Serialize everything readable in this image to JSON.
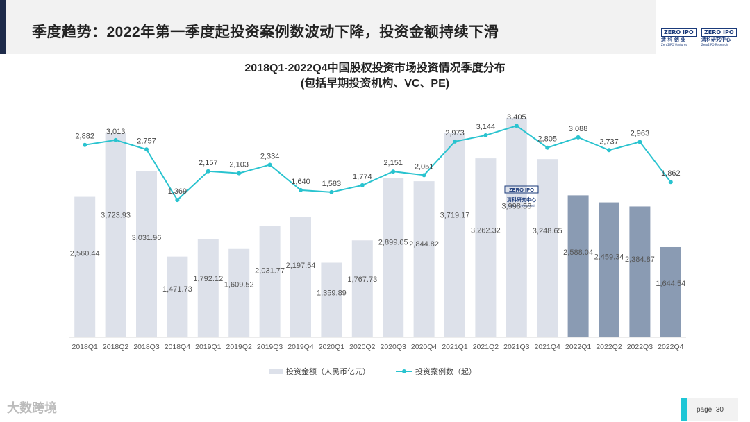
{
  "header": {
    "title": "季度趋势：2022年第一季度起投资案例数波动下降，投资金额持续下滑",
    "logo_left_top": "ZERO IPO",
    "logo_left_cn": "清 科 创 业",
    "logo_left_en": "Zero2IPO Ventures",
    "logo_right_top": "ZERO IPO",
    "logo_right_cn": "清科研究中心",
    "logo_right_en": "Zero2IPO Research"
  },
  "chart_data": {
    "type": "bar",
    "title": "2018Q1-2022Q4中国股权投资市场投资情况季度分布",
    "subtitle": "(包括早期投资机构、VC、PE)",
    "categories": [
      "2018Q1",
      "2018Q2",
      "2018Q3",
      "2018Q4",
      "2019Q1",
      "2019Q2",
      "2019Q3",
      "2019Q4",
      "2020Q1",
      "2020Q2",
      "2020Q3",
      "2020Q4",
      "2021Q1",
      "2021Q2",
      "2021Q3",
      "2021Q4",
      "2022Q1",
      "2022Q2",
      "2022Q3",
      "2022Q4"
    ],
    "series": [
      {
        "name": "投资金额（人民币亿元）",
        "type": "bar",
        "values": [
          2560.44,
          3723.93,
          3031.96,
          1471.73,
          1792.12,
          1609.52,
          2031.77,
          2197.54,
          1359.89,
          1767.73,
          2899.05,
          2844.82,
          3719.17,
          3262.32,
          3998.56,
          3248.65,
          2588.04,
          2459.34,
          2384.87,
          1644.54
        ],
        "labels": [
          "2,560.44",
          "3,723.93",
          "3,031.96",
          "1,471.73",
          "1,792.12",
          "1,609.52",
          "2,031.77",
          "2,197.54",
          "1,359.89",
          "1,767.73",
          "2,899.05",
          "2,844.82",
          "3,719.17",
          "3,262.32",
          "3,998.56",
          "3,248.65",
          "2,588.04",
          "2,459.34",
          "2,384.87",
          "1,644.54"
        ]
      },
      {
        "name": "投资案例数（起）",
        "type": "line",
        "values": [
          2882,
          3013,
          2757,
          1369,
          2157,
          2103,
          2334,
          1640,
          1583,
          1774,
          2151,
          2051,
          2973,
          3144,
          3405,
          2805,
          3088,
          2737,
          2963,
          1862
        ],
        "labels": [
          "2,882",
          "3,013",
          "2,757",
          "1,369",
          "2,157",
          "2,103",
          "2,334",
          "1,640",
          "1,583",
          "1,774",
          "2,151",
          "2,051",
          "2,973",
          "3,144",
          "3,405",
          "2,805",
          "3,088",
          "2,737",
          "2,963",
          "1,862"
        ]
      }
    ],
    "ylim_bar": [
      0,
      4250
    ],
    "ylim_line": [
      -2400,
      4000
    ],
    "highlight_from_index": 16,
    "colors": {
      "bar": "#dde1ea",
      "bar_highlight": "#8a9bb3",
      "line": "#29c3cf",
      "label": "#555555"
    },
    "legend_position": "bottom-center",
    "watermark": {
      "top": "ZERO IPO",
      "cn": "清科研究中心",
      "en": "Zero2IPO Research"
    }
  },
  "footer": {
    "brand": "大数跨境",
    "page_label": "page",
    "page_number": "30"
  }
}
